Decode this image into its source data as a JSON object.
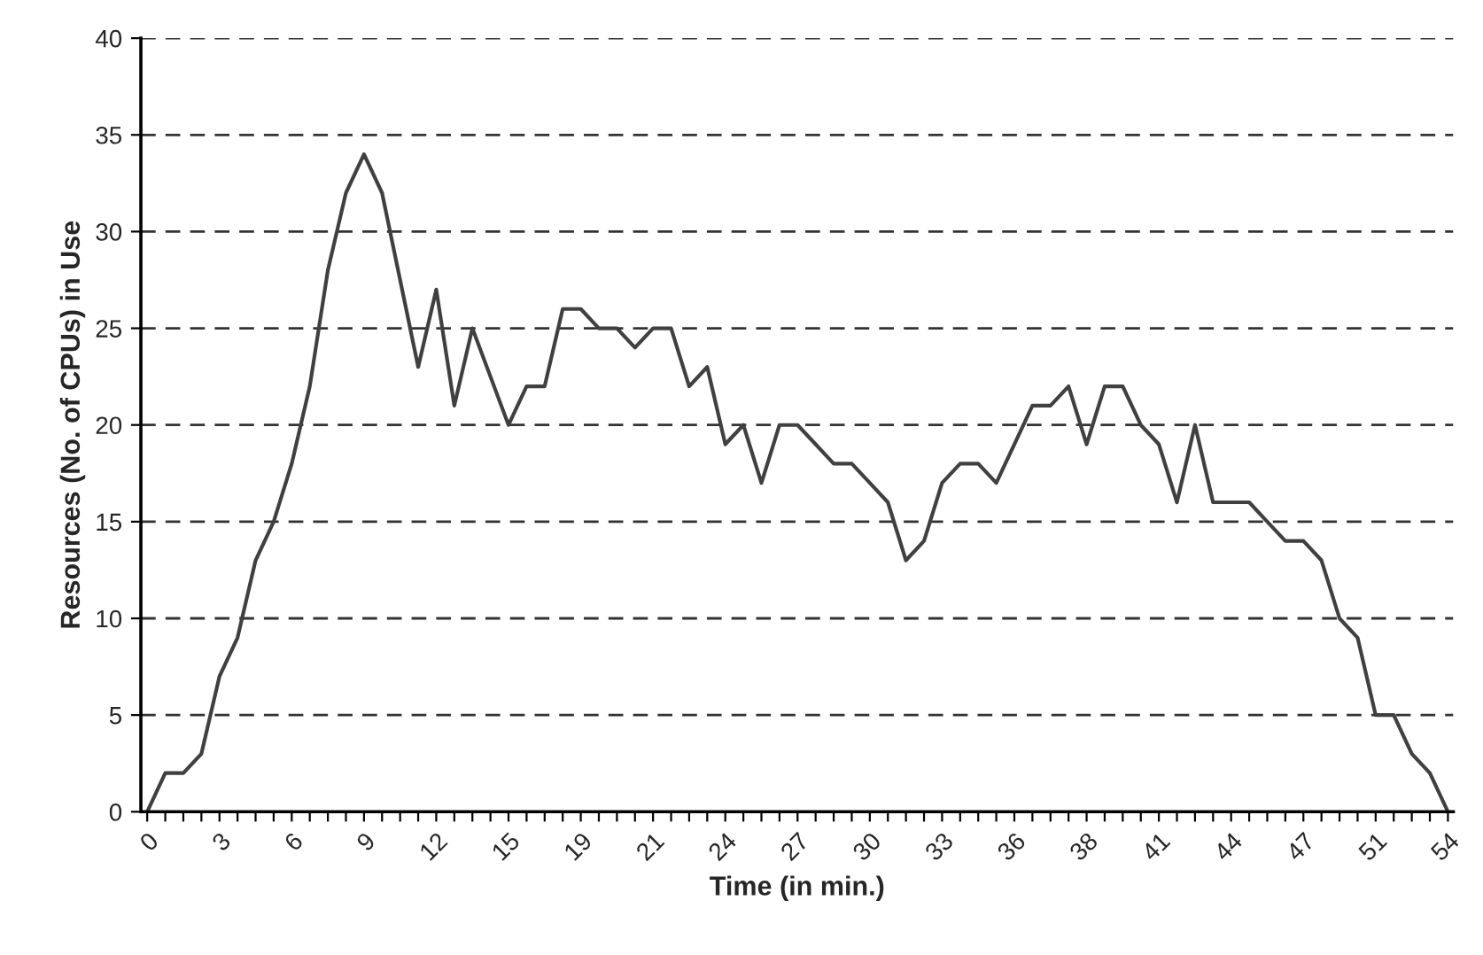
{
  "chart_data": {
    "type": "line",
    "xlabel": "Time (in min.)",
    "ylabel": "Resources (No. of CPUs) in Use",
    "categories": [
      "0",
      null,
      null,
      null,
      "3",
      null,
      null,
      null,
      "6",
      null,
      null,
      null,
      "9",
      null,
      null,
      null,
      "12",
      null,
      null,
      null,
      "15",
      null,
      null,
      null,
      "19",
      null,
      null,
      null,
      "21",
      null,
      null,
      null,
      "24",
      null,
      null,
      null,
      "27",
      null,
      null,
      null,
      "30",
      null,
      null,
      null,
      "33",
      null,
      null,
      null,
      "36",
      null,
      null,
      null,
      "38",
      null,
      null,
      null,
      "41",
      null,
      null,
      null,
      "44",
      null,
      null,
      null,
      "47",
      null,
      null,
      null,
      "51",
      null,
      null,
      null,
      "54"
    ],
    "series": [
      {
        "color": "#404040",
        "values": [
          0,
          2,
          2,
          3,
          7,
          9,
          13,
          15,
          18,
          22,
          28,
          32,
          34,
          32,
          27.5,
          23,
          27,
          21,
          25,
          22.5,
          20,
          22,
          22,
          26,
          26,
          25,
          25,
          24,
          25,
          25,
          22,
          23,
          19,
          20,
          17,
          20,
          20,
          19,
          18,
          18,
          17,
          16,
          13,
          14,
          17,
          18,
          18,
          17,
          19,
          21,
          21,
          22,
          19,
          22,
          22,
          20,
          19,
          16,
          20,
          16,
          16,
          16,
          15,
          14,
          14,
          13,
          10,
          9,
          5,
          5,
          3,
          2,
          0
        ]
      }
    ],
    "ylim": [
      0,
      40
    ],
    "yticks": [
      0,
      5,
      10,
      15,
      20,
      25,
      30,
      35,
      40
    ],
    "grid": "y",
    "line_style": "solid",
    "marker": "none"
  }
}
